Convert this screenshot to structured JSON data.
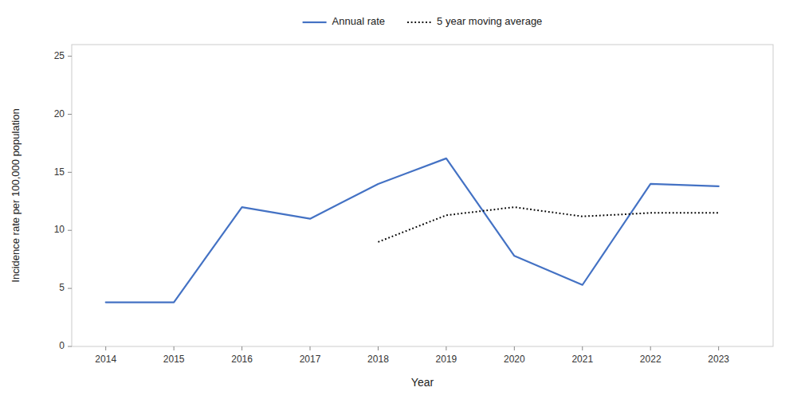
{
  "chart_data": {
    "type": "line",
    "xlabel": "Year",
    "ylabel": "Incidence rate per 100,000 population",
    "x": [
      2014,
      2015,
      2016,
      2017,
      2018,
      2019,
      2020,
      2021,
      2022,
      2023
    ],
    "series": [
      {
        "name": "Annual rate",
        "color": "#4472C4",
        "line_style": "solid",
        "values": [
          3.8,
          3.8,
          12.0,
          11.0,
          14.0,
          16.2,
          7.8,
          5.3,
          14.0,
          13.8
        ]
      },
      {
        "name": "5 year moving average",
        "color": "#000000",
        "line_style": "dotted",
        "values": [
          null,
          null,
          null,
          null,
          9.0,
          11.3,
          12.0,
          11.2,
          11.5,
          11.5
        ]
      }
    ],
    "xlim": [
      2013.5,
      2023.8
    ],
    "xticks": [
      2014,
      2015,
      2016,
      2017,
      2018,
      2019,
      2020,
      2021,
      2022,
      2023
    ],
    "ylim": [
      0,
      26
    ],
    "yticks": [
      0,
      5,
      10,
      15,
      20,
      25
    ],
    "grid": false,
    "legend": "top"
  }
}
